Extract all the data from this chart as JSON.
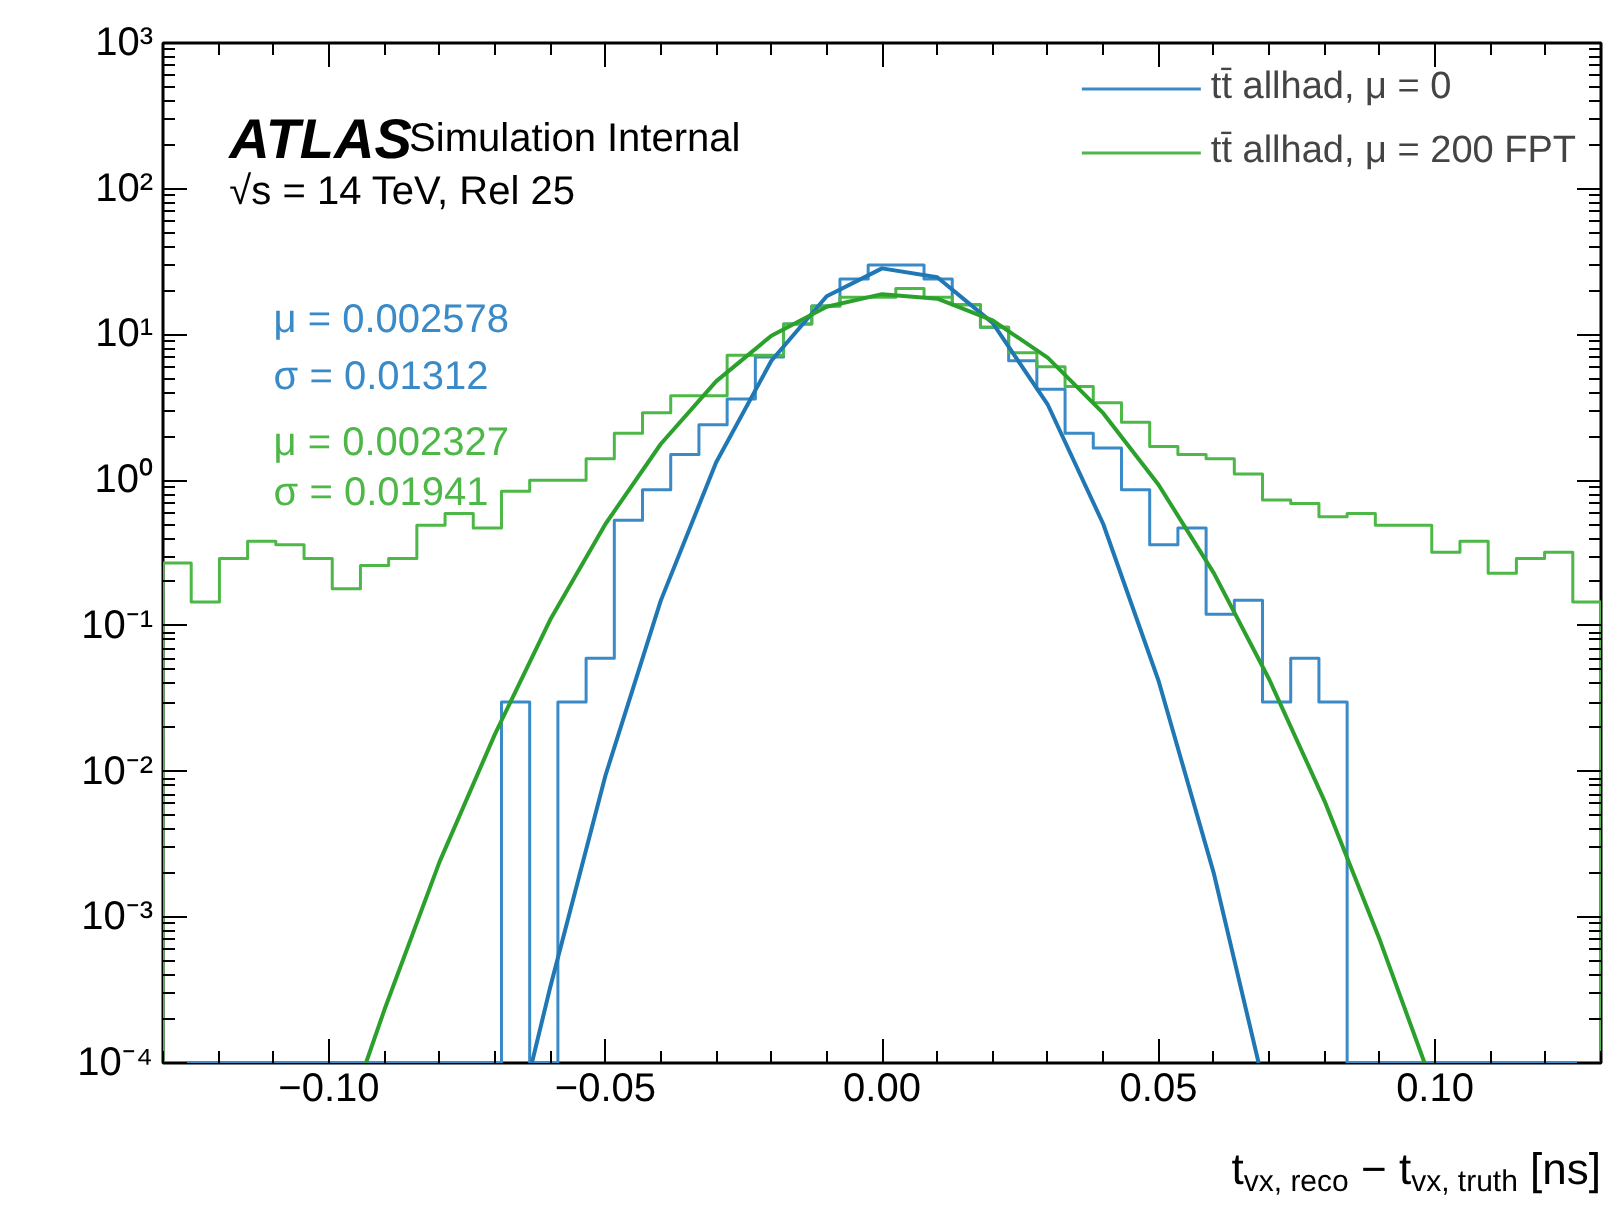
{
  "chart_data": {
    "type": "histogram",
    "xlabel": "t$_{vx, reco}$ − t$_{vx, truth}$ [ns]",
    "bins": [
      -0.13,
      -0.1249,
      -0.1198,
      -0.1147,
      -0.1096,
      -0.1045,
      -0.0994,
      -0.0943,
      -0.0892,
      -0.0841,
      -0.079,
      -0.0739,
      -0.0688,
      -0.0637,
      -0.0586,
      -0.0535,
      -0.0484,
      -0.0433,
      -0.0382,
      -0.0331,
      -0.028,
      -0.0229,
      -0.0178,
      -0.0127,
      -0.0076,
      -0.0025,
      0.0025,
      0.0076,
      0.0127,
      0.0178,
      0.0229,
      0.028,
      0.0331,
      0.0382,
      0.0433,
      0.0484,
      0.0535,
      0.0586,
      0.0637,
      0.0688,
      0.0739,
      0.079,
      0.0841,
      0.0892,
      0.0943,
      0.0994,
      0.1045,
      0.1096,
      0.1147,
      0.1198,
      0.1249,
      0.13
    ],
    "series": [
      {
        "name": "tt̄ allhad, μ = 0",
        "color": "#3a8ac8",
        "values": [
          null,
          null,
          null,
          null,
          null,
          null,
          null,
          null,
          null,
          null,
          null,
          null,
          0.03,
          null,
          0.03,
          0.06,
          0.53,
          0.86,
          1.5,
          2.4,
          3.6,
          7.0,
          11.8,
          15.7,
          24,
          30,
          30,
          24,
          16,
          11.2,
          6.6,
          4.2,
          2.1,
          1.66,
          0.86,
          0.36,
          0.47,
          0.12,
          0.15,
          0.03,
          0.06,
          0.03,
          null,
          null,
          null,
          null,
          null,
          null,
          null,
          null,
          null
        ]
      },
      {
        "name": "tt̄ allhad, μ = 200 FPT",
        "color": "#4db848",
        "values": [
          0.27,
          0.146,
          0.29,
          0.38,
          0.36,
          0.29,
          0.18,
          0.26,
          0.29,
          0.49,
          0.59,
          0.47,
          0.84,
          1.0,
          1.0,
          1.4,
          2.1,
          2.9,
          3.8,
          3.8,
          7.2,
          7.2,
          11.8,
          15.7,
          18,
          18,
          20.7,
          18,
          16,
          11.2,
          7.5,
          6.0,
          4.4,
          3.4,
          2.5,
          1.7,
          1.5,
          1.4,
          1.1,
          0.73,
          0.69,
          0.56,
          0.59,
          0.49,
          0.49,
          0.32,
          0.38,
          0.23,
          0.29,
          0.32,
          0.146
        ]
      },
      {
        "type": "line",
        "color": "#1f77b4",
        "x": [
          -0.0633,
          -0.06,
          -0.05,
          -0.04,
          -0.03,
          -0.02,
          -0.01,
          0.0,
          0.01,
          0.02,
          0.03,
          0.04,
          0.05,
          0.06,
          0.0681
        ],
        "values": [
          0.0001,
          0.00033,
          0.0094,
          0.149,
          1.32,
          6.6,
          18.3,
          28.4,
          24.7,
          12.0,
          3.28,
          0.5,
          0.042,
          0.002,
          0.0001
        ]
      },
      {
        "type": "line",
        "color": "#2ca02c",
        "x": [
          -0.0933,
          -0.09,
          -0.08,
          -0.07,
          -0.06,
          -0.05,
          -0.04,
          -0.03,
          -0.02,
          -0.01,
          0.0,
          0.01,
          0.02,
          0.03,
          0.04,
          0.05,
          0.06,
          0.07,
          0.08,
          0.09,
          0.0981
        ],
        "values": [
          0.0001,
          0.00023,
          0.0024,
          0.018,
          0.11,
          0.5,
          1.77,
          4.76,
          9.8,
          15.5,
          18.9,
          17.6,
          12.5,
          6.9,
          2.88,
          0.93,
          0.23,
          0.043,
          0.0063,
          0.0007,
          0.0001
        ]
      }
    ],
    "xlim": [
      -0.13,
      0.13
    ],
    "xticks": [
      {
        "value": -0.1,
        "label": "−0.10"
      },
      {
        "value": -0.05,
        "label": "−0.05"
      },
      {
        "value": 0,
        "label": "0.00"
      },
      {
        "value": 0.05,
        "label": "0.05"
      },
      {
        "value": 0.1,
        "label": "0.10"
      }
    ],
    "ylim": [
      0.0001,
      1000
    ],
    "yticks": [
      {
        "value": 0.0001,
        "label": "10⁻⁴"
      },
      {
        "value": 0.001,
        "label": "10⁻³"
      },
      {
        "value": 0.01,
        "label": "10⁻²"
      },
      {
        "value": 0.1,
        "label": "10⁻¹"
      },
      {
        "value": 1,
        "label": "10⁰"
      },
      {
        "value": 10,
        "label": "10¹"
      },
      {
        "value": 100,
        "label": "10²"
      },
      {
        "value": 1000,
        "label": "10³"
      }
    ],
    "log": "y",
    "grid": false,
    "legend": "top right",
    "annotations": [
      "ATLAS",
      "Simulation Internal",
      "√s = 14 TeV, Rel 25",
      "μ = 0.002578",
      "σ = 0.01312",
      "μ = 0.002327",
      "σ = 0.01941"
    ]
  }
}
